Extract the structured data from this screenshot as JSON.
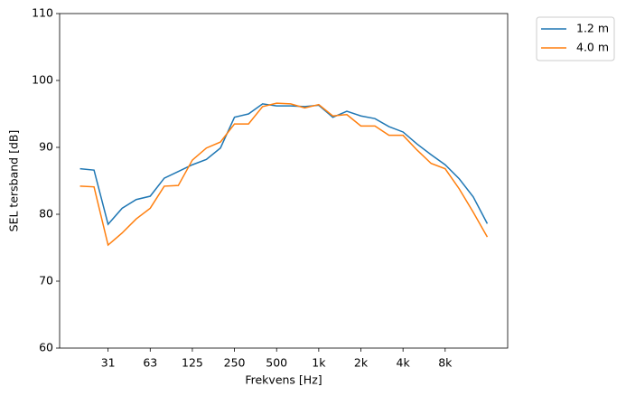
{
  "chart_data": {
    "type": "line",
    "xlabel": "Frekvens [Hz]",
    "ylabel": "SEL tersband [dB]",
    "categories": [
      null,
      null,
      "31",
      null,
      null,
      "63",
      null,
      null,
      "125",
      null,
      null,
      "250",
      null,
      null,
      "500",
      null,
      null,
      "1k",
      null,
      null,
      "2k",
      null,
      null,
      "4k",
      null,
      null,
      "8k",
      null,
      null,
      null
    ],
    "series": [
      {
        "name": "1.2 m",
        "color": "#1f77b4",
        "values": [
          86.8,
          86.6,
          78.5,
          80.9,
          82.2,
          82.7,
          85.4,
          86.4,
          87.4,
          88.2,
          89.9,
          94.5,
          95.0,
          96.5,
          96.2,
          96.2,
          96.1,
          96.3,
          94.5,
          95.4,
          94.7,
          94.3,
          93.1,
          92.3,
          90.5,
          88.9,
          87.4,
          85.3,
          82.6,
          78.6
        ]
      },
      {
        "name": "4.0 m",
        "color": "#ff7f0e",
        "values": [
          84.2,
          84.1,
          75.4,
          77.2,
          79.3,
          80.9,
          84.2,
          84.3,
          88.1,
          89.9,
          90.8,
          93.5,
          93.5,
          96.1,
          96.6,
          96.5,
          95.9,
          96.4,
          94.7,
          94.9,
          93.2,
          93.2,
          91.8,
          91.8,
          89.6,
          87.6,
          86.8,
          83.8,
          80.3,
          76.6
        ]
      }
    ],
    "ylim": [
      60,
      110
    ],
    "yticks": [
      60,
      70,
      80,
      90,
      100,
      110
    ],
    "legend": "outside upper right"
  }
}
